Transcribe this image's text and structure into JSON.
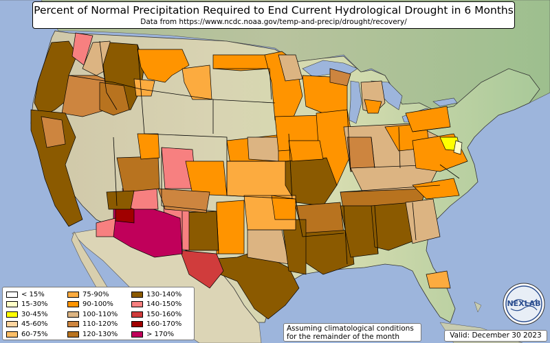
{
  "title": "Percent of Normal Precipitation Required to End Current Hydrological Drought in 6 Months",
  "subtitle": "Data from https://www.ncdc.noaa.gov/temp-and-precip/drought/recovery/",
  "note_line1": "Assuming climatological conditions",
  "note_line2": "for the remainder of the month",
  "valid": "Valid: December 30 2023",
  "logo_text": "NEXLAB",
  "legend": [
    {
      "label": "< 15%",
      "color": "#ffffff"
    },
    {
      "label": "15-30%",
      "color": "#ffffc8"
    },
    {
      "label": "30-45%",
      "color": "#ffff00"
    },
    {
      "label": "45-60%",
      "color": "#fdd5a0"
    },
    {
      "label": "60-75%",
      "color": "#fcbf68"
    },
    {
      "label": "75-90%",
      "color": "#fcab3f"
    },
    {
      "label": "90-100%",
      "color": "#ff9400"
    },
    {
      "label": "100-110%",
      "color": "#dcb482"
    },
    {
      "label": "110-120%",
      "color": "#cd853f"
    },
    {
      "label": "120-130%",
      "color": "#b8731f"
    },
    {
      "label": "130-140%",
      "color": "#8b5a00"
    },
    {
      "label": "140-150%",
      "color": "#f78080"
    },
    {
      "label": "150-160%",
      "color": "#d03c3c"
    },
    {
      "label": "160-170%",
      "color": "#a00000"
    },
    {
      "label": "> 170%",
      "color": "#c0005a"
    }
  ],
  "colors": {
    "ocean": "#9db5dc",
    "land_base": "#d9dab5",
    "border": "#000000"
  }
}
